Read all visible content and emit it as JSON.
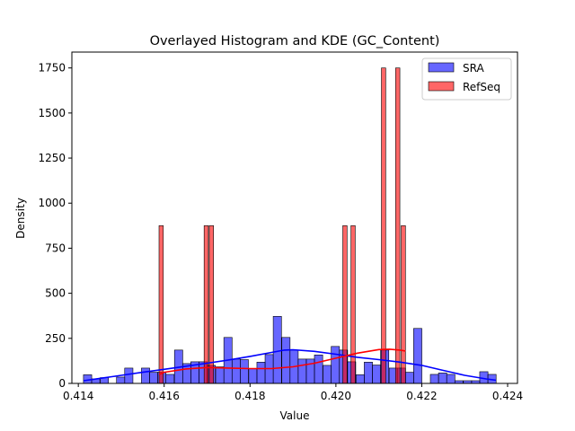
{
  "chart_data": {
    "type": "histogram",
    "title": "Overlayed Histogram and KDE (GC_Content)",
    "xlabel": "Value",
    "ylabel": "Density",
    "xlim": [
      0.41385,
      0.42423
    ],
    "ylim": [
      0,
      1838
    ],
    "x_ticks": [
      0.414,
      0.416,
      0.418,
      0.42,
      0.422,
      0.424
    ],
    "x_tick_labels": [
      "0.414",
      "0.416",
      "0.418",
      "0.420",
      "0.422",
      "0.424"
    ],
    "y_ticks": [
      0,
      250,
      500,
      750,
      1000,
      1250,
      1500,
      1750
    ],
    "y_tick_labels": [
      "0",
      "250",
      "500",
      "750",
      "1000",
      "1250",
      "1500",
      "1750"
    ],
    "legend": {
      "position": "top-right"
    },
    "series": [
      {
        "name": "SRA",
        "color": "#0000ff",
        "bin_width": 0.000192,
        "bins": [
          [
            0.41412,
            48
          ],
          [
            0.41431,
            25
          ],
          [
            0.41451,
            32
          ],
          [
            0.4147,
            0
          ],
          [
            0.41489,
            35
          ],
          [
            0.41508,
            85
          ],
          [
            0.41527,
            0
          ],
          [
            0.41547,
            85
          ],
          [
            0.41566,
            62
          ],
          [
            0.41585,
            62
          ],
          [
            0.41604,
            50
          ],
          [
            0.41624,
            185
          ],
          [
            0.41643,
            110
          ],
          [
            0.41662,
            120
          ],
          [
            0.41681,
            120
          ],
          [
            0.417,
            100
          ],
          [
            0.4172,
            92
          ],
          [
            0.41739,
            255
          ],
          [
            0.41758,
            135
          ],
          [
            0.41777,
            132
          ],
          [
            0.41797,
            82
          ],
          [
            0.41816,
            118
          ],
          [
            0.41835,
            160
          ],
          [
            0.41854,
            372
          ],
          [
            0.41874,
            255
          ],
          [
            0.41893,
            185
          ],
          [
            0.41912,
            135
          ],
          [
            0.41931,
            135
          ],
          [
            0.4195,
            158
          ],
          [
            0.4197,
            100
          ],
          [
            0.41989,
            205
          ],
          [
            0.42008,
            185
          ],
          [
            0.42027,
            120
          ],
          [
            0.42047,
            48
          ],
          [
            0.42066,
            118
          ],
          [
            0.42085,
            102
          ],
          [
            0.42104,
            185
          ],
          [
            0.42124,
            85
          ],
          [
            0.42143,
            85
          ],
          [
            0.42162,
            62
          ],
          [
            0.42181,
            305
          ],
          [
            0.422,
            0
          ],
          [
            0.4222,
            50
          ],
          [
            0.42239,
            58
          ],
          [
            0.42258,
            50
          ],
          [
            0.42277,
            15
          ],
          [
            0.42297,
            15
          ],
          [
            0.42316,
            15
          ],
          [
            0.42335,
            65
          ],
          [
            0.42354,
            50
          ]
        ],
        "kde": [
          [
            0.41412,
            15
          ],
          [
            0.4145,
            28
          ],
          [
            0.415,
            45
          ],
          [
            0.4155,
            62
          ],
          [
            0.416,
            78
          ],
          [
            0.4165,
            95
          ],
          [
            0.417,
            112
          ],
          [
            0.4175,
            130
          ],
          [
            0.418,
            150
          ],
          [
            0.4185,
            172
          ],
          [
            0.4188,
            185
          ],
          [
            0.419,
            187
          ],
          [
            0.4195,
            178
          ],
          [
            0.42,
            162
          ],
          [
            0.4205,
            145
          ],
          [
            0.421,
            132
          ],
          [
            0.4215,
            118
          ],
          [
            0.422,
            100
          ],
          [
            0.4225,
            72
          ],
          [
            0.423,
            45
          ],
          [
            0.4235,
            25
          ],
          [
            0.42373,
            18
          ]
        ]
      },
      {
        "name": "RefSeq",
        "color": "#ff0000",
        "bin_width": 0.0001,
        "bins": [
          [
            0.41588,
            875
          ],
          [
            0.41693,
            875
          ],
          [
            0.41705,
            875
          ],
          [
            0.42016,
            875
          ],
          [
            0.42035,
            875
          ],
          [
            0.42106,
            1750
          ],
          [
            0.42139,
            1750
          ],
          [
            0.42152,
            875
          ]
        ],
        "kde": [
          [
            0.41588,
            50
          ],
          [
            0.416,
            62
          ],
          [
            0.4165,
            80
          ],
          [
            0.417,
            88
          ],
          [
            0.4175,
            85
          ],
          [
            0.418,
            82
          ],
          [
            0.4185,
            82
          ],
          [
            0.419,
            92
          ],
          [
            0.4195,
            112
          ],
          [
            0.42,
            140
          ],
          [
            0.4205,
            168
          ],
          [
            0.421,
            188
          ],
          [
            0.42125,
            190
          ],
          [
            0.4215,
            185
          ],
          [
            0.42162,
            180
          ]
        ]
      }
    ]
  }
}
